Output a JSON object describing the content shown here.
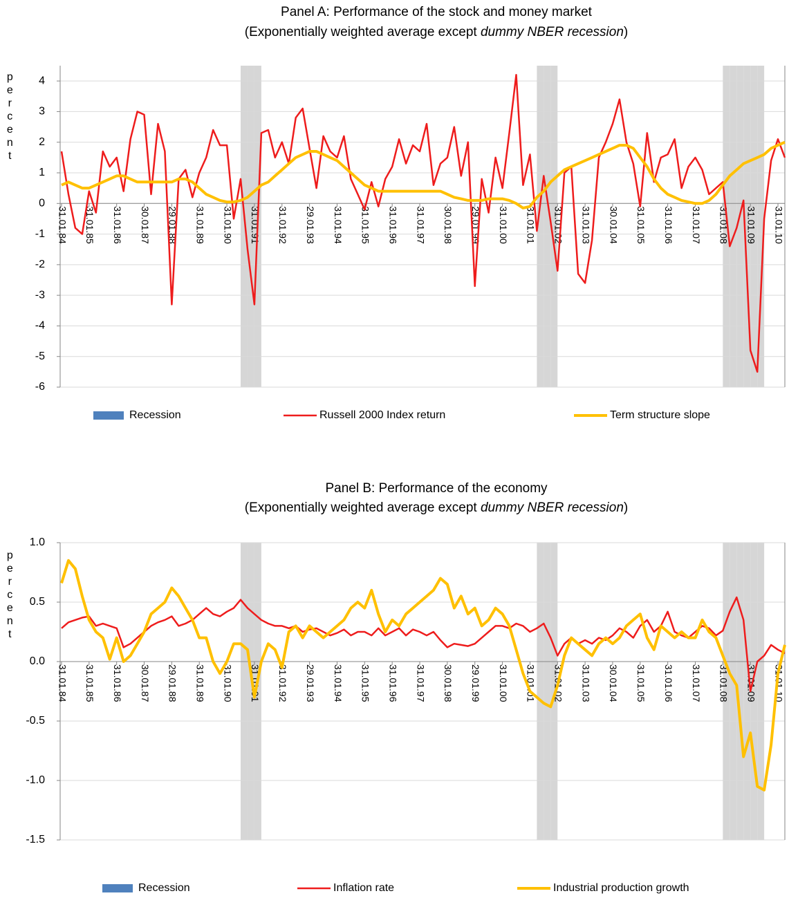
{
  "chart_data": [
    {
      "type": "line",
      "title": "Panel A: Performance of the stock and money market",
      "subtitle": [
        "(Exponentially weighted average except ",
        "dummy NBER recession",
        ")"
      ],
      "ylabel": "percent",
      "categories": [
        "31.01.84",
        null,
        null,
        null,
        "31.01.85",
        null,
        null,
        null,
        "31.01.86",
        null,
        null,
        null,
        "30.01.87",
        null,
        null,
        null,
        "29.01.88",
        null,
        null,
        null,
        "31.01.89",
        null,
        null,
        null,
        "31.01.90",
        null,
        null,
        null,
        "31.01.91",
        null,
        null,
        null,
        "31.01.92",
        null,
        null,
        null,
        "29.01.93",
        null,
        null,
        null,
        "31.01.94",
        null,
        null,
        null,
        "31.01.95",
        null,
        null,
        null,
        "31.01.96",
        null,
        null,
        null,
        "31.01.97",
        null,
        null,
        null,
        "30.01.98",
        null,
        null,
        null,
        "29.01.99",
        null,
        null,
        null,
        "31.01.00",
        null,
        null,
        null,
        "31.01.01",
        null,
        null,
        null,
        "31.01.02",
        null,
        null,
        null,
        "31.01.03",
        null,
        null,
        null,
        "30.01.04",
        null,
        null,
        null,
        "31.01.05",
        null,
        null,
        null,
        "31.01.06",
        null,
        null,
        null,
        "31.01.07",
        null,
        null,
        null,
        "31.01.08",
        null,
        null,
        null,
        "31.01.09",
        null,
        null,
        null,
        "31.01.10",
        null
      ],
      "ylim": [
        -6,
        4.5
      ],
      "yticks": [
        -6,
        -5,
        -4,
        -3,
        -2,
        -1,
        0,
        1,
        2,
        3,
        4
      ],
      "y2lim": [
        0,
        1
      ],
      "grid": true,
      "series": [
        {
          "name": "Recession",
          "type": "bar",
          "axis": "y2",
          "color": "#4f81bd",
          "band_color": "#d6d6d6",
          "values": [
            0,
            0,
            0,
            0,
            0,
            0,
            0,
            0,
            0,
            0,
            0,
            0,
            0,
            0,
            0,
            0,
            0,
            0,
            0,
            0,
            0,
            0,
            0,
            0,
            0,
            0,
            1,
            1,
            1,
            0,
            0,
            0,
            0,
            0,
            0,
            0,
            0,
            0,
            0,
            0,
            0,
            0,
            0,
            0,
            0,
            0,
            0,
            0,
            0,
            0,
            0,
            0,
            0,
            0,
            0,
            0,
            0,
            0,
            0,
            0,
            0,
            0,
            0,
            0,
            0,
            0,
            0,
            0,
            0,
            1,
            1,
            1,
            0,
            0,
            0,
            0,
            0,
            0,
            0,
            0,
            0,
            0,
            0,
            0,
            0,
            0,
            0,
            0,
            0,
            0,
            0,
            0,
            0,
            0,
            0,
            0,
            1,
            1,
            1,
            1,
            1,
            1,
            0,
            0,
            0,
            0
          ]
        },
        {
          "name": "Russell 2000 Index return",
          "type": "line",
          "color": "#ee1c1c",
          "values": [
            1.7,
            0.3,
            -0.8,
            -1.0,
            0.4,
            -0.3,
            1.7,
            1.2,
            1.5,
            0.4,
            2.1,
            3.0,
            2.9,
            0.3,
            2.6,
            1.7,
            -3.3,
            0.8,
            1.1,
            0.2,
            1.0,
            1.5,
            2.4,
            1.9,
            1.9,
            -0.5,
            0.8,
            -1.5,
            -3.3,
            2.3,
            2.4,
            1.5,
            2.0,
            1.3,
            2.8,
            3.1,
            1.8,
            0.5,
            2.2,
            1.7,
            1.5,
            2.2,
            0.8,
            0.3,
            -0.2,
            0.7,
            -0.1,
            0.8,
            1.2,
            2.1,
            1.3,
            1.9,
            1.7,
            2.6,
            0.6,
            1.3,
            1.5,
            2.5,
            0.9,
            2.0,
            -2.7,
            0.8,
            -0.3,
            1.5,
            0.5,
            2.3,
            4.2,
            0.6,
            1.6,
            -0.9,
            0.9,
            -0.6,
            -2.2,
            1.0,
            1.2,
            -2.3,
            -2.6,
            -1.2,
            1.5,
            2.0,
            2.6,
            3.4,
            2.0,
            1.3,
            -0.1,
            2.3,
            0.7,
            1.5,
            1.6,
            2.1,
            0.5,
            1.2,
            1.5,
            1.1,
            0.3,
            0.5,
            0.7,
            -1.4,
            -0.8,
            0.1,
            -4.8,
            -5.5,
            -0.5,
            1.4,
            2.1,
            1.5
          ]
        },
        {
          "name": "Term structure slope",
          "type": "line",
          "color": "#ffc000",
          "values": [
            0.6,
            0.7,
            0.6,
            0.5,
            0.5,
            0.6,
            0.7,
            0.8,
            0.9,
            0.9,
            0.8,
            0.7,
            0.7,
            0.7,
            0.7,
            0.7,
            0.7,
            0.8,
            0.8,
            0.7,
            0.5,
            0.3,
            0.2,
            0.1,
            0.05,
            0.05,
            0.1,
            0.2,
            0.4,
            0.6,
            0.7,
            0.9,
            1.1,
            1.3,
            1.5,
            1.6,
            1.7,
            1.7,
            1.6,
            1.5,
            1.4,
            1.2,
            1.0,
            0.8,
            0.6,
            0.5,
            0.4,
            0.4,
            0.4,
            0.4,
            0.4,
            0.4,
            0.4,
            0.4,
            0.4,
            0.4,
            0.3,
            0.2,
            0.15,
            0.1,
            0.1,
            0.1,
            0.15,
            0.15,
            0.15,
            0.1,
            0.0,
            -0.15,
            -0.1,
            0.2,
            0.4,
            0.7,
            0.9,
            1.1,
            1.2,
            1.3,
            1.4,
            1.5,
            1.6,
            1.7,
            1.8,
            1.9,
            1.9,
            1.8,
            1.5,
            1.2,
            0.8,
            0.5,
            0.3,
            0.2,
            0.1,
            0.05,
            0.0,
            0.0,
            0.1,
            0.3,
            0.6,
            0.9,
            1.1,
            1.3,
            1.4,
            1.5,
            1.6,
            1.8,
            1.9,
            2.0
          ]
        }
      ]
    },
    {
      "type": "line",
      "title": "Panel B: Performance of the economy",
      "subtitle": [
        "(Exponentially weighted average except  ",
        "dummy NBER recession",
        ")"
      ],
      "ylabel": "percent",
      "categories": [
        "31.01.84",
        null,
        null,
        null,
        "31.01.85",
        null,
        null,
        null,
        "31.01.86",
        null,
        null,
        null,
        "30.01.87",
        null,
        null,
        null,
        "29.01.88",
        null,
        null,
        null,
        "31.01.89",
        null,
        null,
        null,
        "31.01.90",
        null,
        null,
        null,
        "31.01.91",
        null,
        null,
        null,
        "31.01.92",
        null,
        null,
        null,
        "29.01.93",
        null,
        null,
        null,
        "31.01.94",
        null,
        null,
        null,
        "31.01.95",
        null,
        null,
        null,
        "31.01.96",
        null,
        null,
        null,
        "31.01.97",
        null,
        null,
        null,
        "30.01.98",
        null,
        null,
        null,
        "29.01.99",
        null,
        null,
        null,
        "31.01.00",
        null,
        null,
        null,
        "31.01.01",
        null,
        null,
        null,
        "31.01.02",
        null,
        null,
        null,
        "31.01.03",
        null,
        null,
        null,
        "30.01.04",
        null,
        null,
        null,
        "31.01.05",
        null,
        null,
        null,
        "31.01.06",
        null,
        null,
        null,
        "31.01.07",
        null,
        null,
        null,
        "31.01.08",
        null,
        null,
        null,
        "31.01.09",
        null,
        null,
        null,
        "31.01.10",
        null
      ],
      "ylim": [
        -1.5,
        1.0
      ],
      "yticks": [
        {
          "value": -1.5,
          "label": "-1.5"
        },
        {
          "value": -1,
          "label": "-1.0"
        },
        {
          "value": -0.5,
          "label": "-0.5"
        },
        {
          "value": 0,
          "label": "0.0"
        },
        {
          "value": 0.5,
          "label": "0.5"
        },
        {
          "value": 1,
          "label": "1.0"
        }
      ],
      "y2lim": [
        0,
        1
      ],
      "grid": true,
      "series": [
        {
          "name": "Recession",
          "type": "bar",
          "axis": "y2",
          "color": "#4f81bd",
          "band_color": "#d6d6d6",
          "values": [
            0,
            0,
            0,
            0,
            0,
            0,
            0,
            0,
            0,
            0,
            0,
            0,
            0,
            0,
            0,
            0,
            0,
            0,
            0,
            0,
            0,
            0,
            0,
            0,
            0,
            0,
            1,
            1,
            1,
            0,
            0,
            0,
            0,
            0,
            0,
            0,
            0,
            0,
            0,
            0,
            0,
            0,
            0,
            0,
            0,
            0,
            0,
            0,
            0,
            0,
            0,
            0,
            0,
            0,
            0,
            0,
            0,
            0,
            0,
            0,
            0,
            0,
            0,
            0,
            0,
            0,
            0,
            0,
            0,
            1,
            1,
            1,
            0,
            0,
            0,
            0,
            0,
            0,
            0,
            0,
            0,
            0,
            0,
            0,
            0,
            0,
            0,
            0,
            0,
            0,
            0,
            0,
            0,
            0,
            0,
            0,
            1,
            1,
            1,
            1,
            1,
            1,
            0,
            0,
            0,
            0
          ]
        },
        {
          "name": "Inflation rate",
          "type": "line",
          "color": "#ee1c1c",
          "values": [
            0.28,
            0.33,
            0.35,
            0.37,
            0.38,
            0.3,
            0.32,
            0.3,
            0.28,
            0.12,
            0.15,
            0.2,
            0.25,
            0.3,
            0.33,
            0.35,
            0.38,
            0.3,
            0.32,
            0.35,
            0.4,
            0.45,
            0.4,
            0.38,
            0.42,
            0.45,
            0.52,
            0.45,
            0.4,
            0.35,
            0.32,
            0.3,
            0.3,
            0.28,
            0.3,
            0.25,
            0.27,
            0.28,
            0.25,
            0.22,
            0.24,
            0.27,
            0.22,
            0.25,
            0.25,
            0.22,
            0.28,
            0.22,
            0.25,
            0.28,
            0.22,
            0.27,
            0.25,
            0.22,
            0.25,
            0.18,
            0.12,
            0.15,
            0.14,
            0.13,
            0.15,
            0.2,
            0.25,
            0.3,
            0.3,
            0.28,
            0.32,
            0.3,
            0.25,
            0.28,
            0.32,
            0.2,
            0.05,
            0.15,
            0.2,
            0.15,
            0.18,
            0.15,
            0.2,
            0.18,
            0.22,
            0.28,
            0.25,
            0.2,
            0.3,
            0.35,
            0.25,
            0.3,
            0.42,
            0.25,
            0.22,
            0.2,
            0.25,
            0.3,
            0.28,
            0.22,
            0.26,
            0.42,
            0.54,
            0.35,
            -0.25,
            0.0,
            0.05,
            0.14,
            0.1,
            0.07
          ]
        },
        {
          "name": "Industrial production growth",
          "type": "line",
          "color": "#ffc000",
          "values": [
            0.66,
            0.85,
            0.78,
            0.55,
            0.35,
            0.25,
            0.2,
            0.02,
            0.2,
            0.0,
            0.05,
            0.15,
            0.25,
            0.4,
            0.45,
            0.5,
            0.62,
            0.55,
            0.45,
            0.35,
            0.2,
            0.2,
            0.0,
            -0.1,
            0.0,
            0.15,
            0.15,
            0.1,
            -0.3,
            0.0,
            0.15,
            0.1,
            -0.05,
            0.25,
            0.3,
            0.2,
            0.3,
            0.25,
            0.2,
            0.25,
            0.3,
            0.35,
            0.45,
            0.5,
            0.45,
            0.6,
            0.4,
            0.25,
            0.35,
            0.3,
            0.4,
            0.45,
            0.5,
            0.55,
            0.6,
            0.7,
            0.65,
            0.45,
            0.55,
            0.4,
            0.45,
            0.3,
            0.35,
            0.45,
            0.4,
            0.3,
            0.1,
            -0.1,
            -0.25,
            -0.3,
            -0.35,
            -0.38,
            -0.2,
            0.05,
            0.2,
            0.15,
            0.1,
            0.05,
            0.15,
            0.2,
            0.15,
            0.2,
            0.3,
            0.35,
            0.4,
            0.2,
            0.1,
            0.3,
            0.25,
            0.2,
            0.25,
            0.2,
            0.2,
            0.35,
            0.25,
            0.2,
            0.05,
            -0.1,
            -0.2,
            -0.8,
            -0.6,
            -1.05,
            -1.08,
            -0.7,
            -0.1,
            0.14
          ]
        }
      ]
    }
  ]
}
